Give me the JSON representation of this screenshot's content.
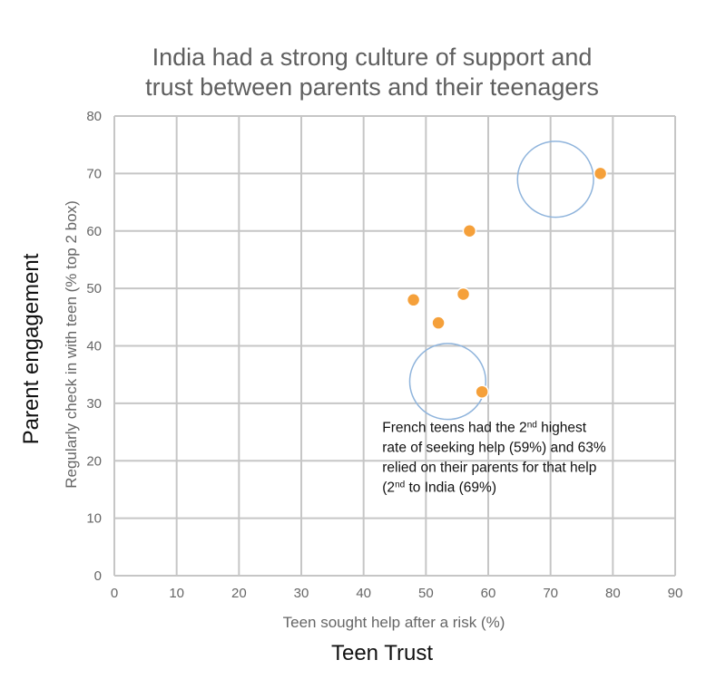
{
  "outer_labels": {
    "y": "Parent engagement",
    "x": "Teen Trust"
  },
  "chart_data": {
    "type": "scatter",
    "title": [
      "India had a strong culture of support and",
      "trust between parents and their teenagers"
    ],
    "xlabel": "Teen sought help after a risk (%)",
    "ylabel": "Regularly check in with teen (% top 2 box)",
    "xlim": [
      0,
      90
    ],
    "ylim": [
      0,
      80
    ],
    "x_ticks": [
      0,
      10,
      20,
      30,
      40,
      50,
      60,
      70,
      80,
      90
    ],
    "y_ticks": [
      0,
      10,
      20,
      30,
      40,
      50,
      60,
      70,
      80
    ],
    "grid": true,
    "series": [
      {
        "color": "#f5a03a",
        "points": [
          {
            "x": 48,
            "y": 48
          },
          {
            "x": 52,
            "y": 44
          },
          {
            "x": 56,
            "y": 49
          },
          {
            "x": 57,
            "y": 60
          },
          {
            "x": 59,
            "y": 32
          },
          {
            "x": 78,
            "y": 70
          }
        ]
      }
    ],
    "highlight_circles": [
      {
        "x": 70.8,
        "y": 69,
        "r_x_units": 6.1
      },
      {
        "x": 53.5,
        "y": 33.8,
        "r_x_units": 6.1
      }
    ],
    "annotation": {
      "lines": [
        {
          "parts": [
            {
              "t": "French teens had the 2"
            },
            {
              "t": "nd",
              "sup": true
            },
            {
              "t": " highest"
            }
          ]
        },
        {
          "parts": [
            {
              "t": "rate of seeking help (59%) and 63%"
            }
          ]
        },
        {
          "parts": [
            {
              "t": "relied on their parents for that help"
            }
          ]
        },
        {
          "parts": [
            {
              "t": "(2"
            },
            {
              "t": "nd",
              "sup": true
            },
            {
              "t": " to India (69%)"
            }
          ]
        }
      ],
      "anchor": {
        "x": 43,
        "y": 25
      }
    }
  }
}
